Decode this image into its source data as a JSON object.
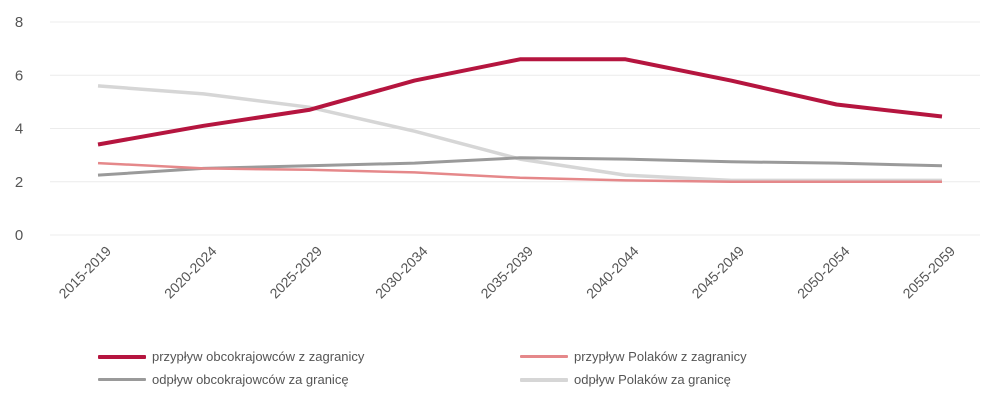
{
  "chart_data": {
    "type": "line",
    "title": "",
    "xlabel": "",
    "ylabel": "",
    "categories": [
      "2015-2019",
      "2020-2024",
      "2025-2029",
      "2030-2034",
      "2035-2039",
      "2040-2044",
      "2045-2049",
      "2050-2054",
      "2055-2059"
    ],
    "ylim": [
      0,
      8
    ],
    "yticks": [
      "0",
      "2",
      "4",
      "6",
      "8"
    ],
    "grid": true,
    "legend_position": "bottom",
    "series": [
      {
        "name": "przypływ obcokrajowców z zagranicy",
        "color": "#b5153f",
        "width": 4,
        "values": [
          3.4,
          4.1,
          4.7,
          5.8,
          6.6,
          6.6,
          5.8,
          4.9,
          4.45
        ]
      },
      {
        "name": "przypływ Polaków z zagranicy",
        "color": "#e5888a",
        "width": 2.5,
        "values": [
          2.7,
          2.5,
          2.45,
          2.35,
          2.15,
          2.05,
          2.0,
          2.0,
          2.0
        ]
      },
      {
        "name": "odpływ obcokrajowców za granicę",
        "color": "#9a9a9a",
        "width": 3,
        "values": [
          2.25,
          2.5,
          2.6,
          2.7,
          2.9,
          2.85,
          2.75,
          2.7,
          2.6
        ]
      },
      {
        "name": "odpływ Polaków za granicę",
        "color": "#d6d6d6",
        "width": 3.5,
        "values": [
          5.6,
          5.3,
          4.8,
          3.9,
          2.85,
          2.25,
          2.05,
          2.05,
          2.05
        ]
      }
    ]
  }
}
